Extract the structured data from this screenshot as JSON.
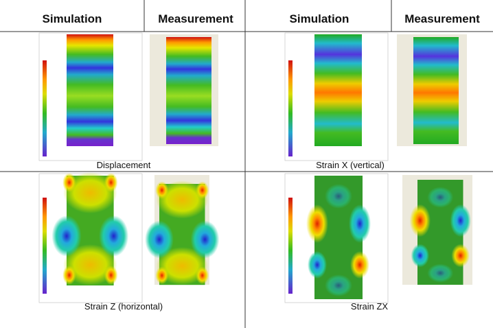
{
  "headers": [
    "Simulation",
    "Measurement",
    "Simulation",
    "Measurement"
  ],
  "panels": [
    {
      "caption": "Displacement"
    },
    {
      "caption": "Strain X (vertical)"
    },
    {
      "caption": "Strain Z (horizontal)"
    },
    {
      "caption": "Strain ZX"
    }
  ]
}
